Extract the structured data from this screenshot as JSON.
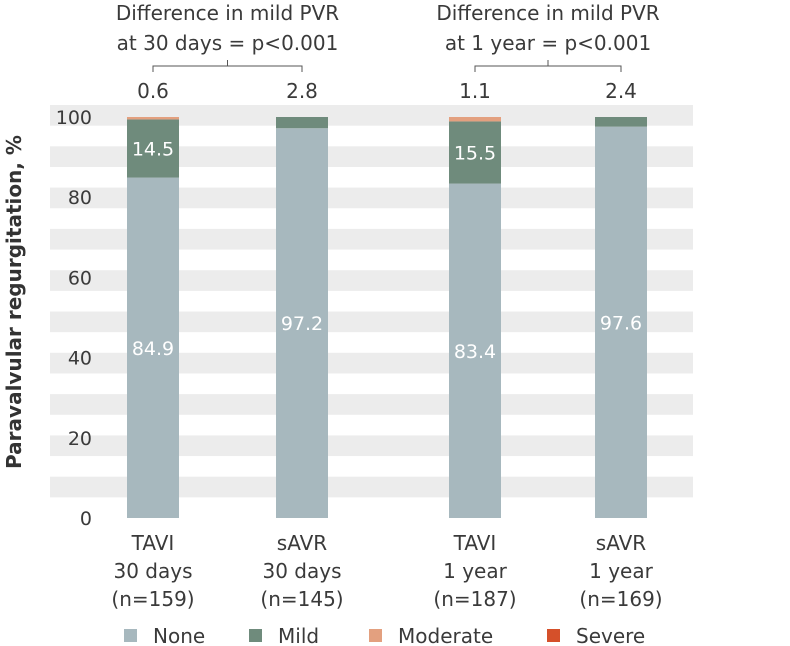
{
  "chart_data": {
    "type": "bar",
    "stacked": true,
    "ylabel": "Paravalvular regurgitation, %",
    "ylim": [
      0,
      100
    ],
    "yticks": [
      0,
      20,
      40,
      60,
      80,
      100
    ],
    "grid": "alternating horizontal bands",
    "categories": [
      [
        "TAVI",
        "30 days",
        "(n=159)"
      ],
      [
        "sAVR",
        "30 days",
        "(n=145)"
      ],
      [
        "TAVI",
        "1 year",
        "(n=187)"
      ],
      [
        "sAVR",
        "1 year",
        "(n=169)"
      ]
    ],
    "series": [
      {
        "name": "None",
        "color": "#a7b8be",
        "values": [
          84.9,
          97.2,
          83.4,
          97.6
        ],
        "labels": [
          "84.9",
          "97.2",
          "83.4",
          "97.6"
        ]
      },
      {
        "name": "Mild",
        "color": "#6f8b7c",
        "values": [
          14.5,
          2.8,
          15.5,
          2.4
        ],
        "labels": [
          "14.5",
          "",
          "15.5",
          ""
        ]
      },
      {
        "name": "Moderate",
        "color": "#e3a07f",
        "values": [
          0.6,
          0,
          1.1,
          0
        ]
      },
      {
        "name": "Severe",
        "color": "#d5502a",
        "values": [
          0,
          0,
          0,
          0
        ]
      }
    ],
    "top_labels": [
      "0.6",
      "2.8",
      "1.1",
      "2.4"
    ],
    "comparisons": [
      {
        "bars": [
          0,
          1
        ],
        "text": [
          "Difference in mild PVR",
          "at 30 days = p<0.001"
        ]
      },
      {
        "bars": [
          2,
          3
        ],
        "text": [
          "Difference in mild PVR",
          "at 1 year = p<0.001"
        ]
      }
    ],
    "legend": {
      "placement": "bottom",
      "entries": [
        "None",
        "Mild",
        "Moderate",
        "Severe"
      ]
    }
  }
}
